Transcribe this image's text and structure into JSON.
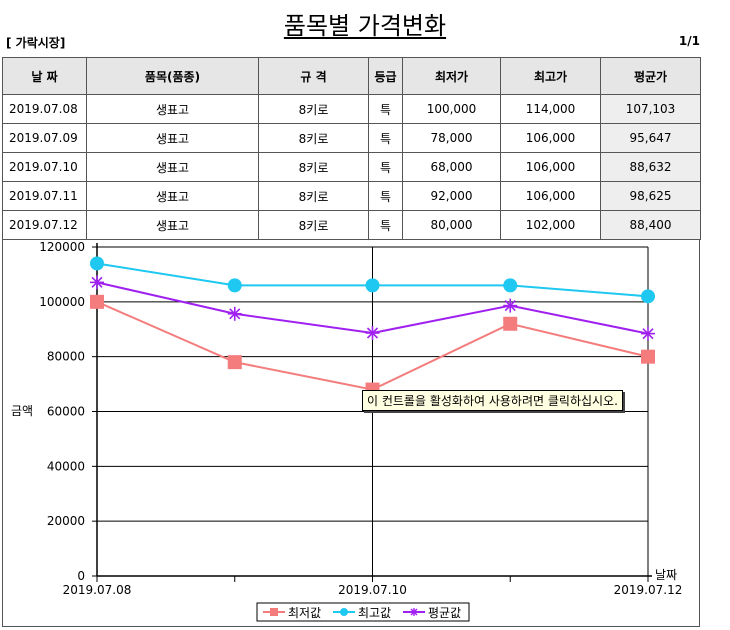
{
  "page": {
    "title": "품목별 가격변화",
    "market_label": "[ 가락시장]",
    "page_indicator": "1/1"
  },
  "table": {
    "headers": [
      "날 짜",
      "품목(품종)",
      "규 격",
      "등급",
      "최저가",
      "최고가",
      "평균가"
    ],
    "rows": [
      [
        "2019.07.08",
        "생표고",
        "8키로",
        "특",
        "100,000",
        "114,000",
        "107,103"
      ],
      [
        "2019.07.09",
        "생표고",
        "8키로",
        "특",
        "78,000",
        "106,000",
        "95,647"
      ],
      [
        "2019.07.10",
        "생표고",
        "8키로",
        "특",
        "68,000",
        "106,000",
        "88,632"
      ],
      [
        "2019.07.11",
        "생표고",
        "8키로",
        "특",
        "92,000",
        "106,000",
        "98,625"
      ],
      [
        "2019.07.12",
        "생표고",
        "8키로",
        "특",
        "80,000",
        "102,000",
        "88,400"
      ]
    ]
  },
  "tooltip": {
    "text": "이 컨트롤을 활성화하여 사용하려면 클릭하십시오."
  },
  "chart_data": {
    "type": "line",
    "title": "",
    "xlabel": "날짜",
    "ylabel": "금액",
    "ylim": [
      0,
      120000
    ],
    "yticks": [
      0,
      20000,
      40000,
      60000,
      80000,
      100000,
      120000
    ],
    "x": [
      "2019.07.08",
      "2019.07.09",
      "2019.07.10",
      "2019.07.11",
      "2019.07.12"
    ],
    "xtick_labels": [
      "2019.07.08",
      "",
      "2019.07.10",
      "",
      "2019.07.12"
    ],
    "grid": true,
    "legend_position": "bottom-center",
    "series": [
      {
        "name": "최저값",
        "color": "#f47c7c",
        "marker": "square",
        "values": [
          100000,
          78000,
          68000,
          92000,
          80000
        ]
      },
      {
        "name": "최고값",
        "color": "#1ec8f0",
        "marker": "circle",
        "values": [
          114000,
          106000,
          106000,
          106000,
          102000
        ]
      },
      {
        "name": "평균값",
        "color": "#a020f0",
        "marker": "star",
        "values": [
          107103,
          95647,
          88632,
          98625,
          88400
        ]
      }
    ]
  }
}
